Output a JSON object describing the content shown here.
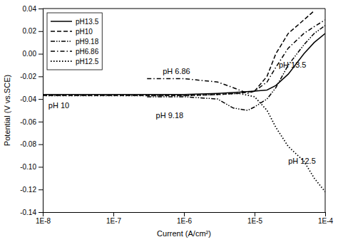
{
  "chart_data": {
    "type": "line",
    "xlabel": "Current (A/cm²)",
    "ylabel": "Potential (V vs.SCE)",
    "log": "x",
    "grid": false,
    "legend": "upper left",
    "xlim": [
      1e-08,
      0.0001
    ],
    "xticks": [
      {
        "value": 1e-08,
        "label": "1E-8"
      },
      {
        "value": 1e-07,
        "label": "1E-7"
      },
      {
        "value": 1e-06,
        "label": "1E-6"
      },
      {
        "value": 1e-05,
        "label": "1E-5"
      },
      {
        "value": 0.0001,
        "label": "1E-4"
      }
    ],
    "ylim": [
      -0.14,
      0.04
    ],
    "yticks": [
      -0.14,
      -0.12,
      {
        "value": -0.1,
        "label": "-0.10"
      },
      -0.08,
      -0.06,
      -0.04,
      -0.02,
      {
        "value": 0,
        "label": "0.00"
      },
      0.02,
      0.04
    ],
    "series": [
      {
        "name": "pH13.5",
        "color": "#000000",
        "line_style": "solid",
        "x": [
          1e-08,
          5e-08,
          1e-07,
          5e-07,
          1e-06,
          3e-06,
          6e-06,
          1e-05,
          1.5e-05,
          2e-05,
          3e-05,
          5e-05,
          7e-05,
          0.0001
        ],
        "values": [
          -0.036,
          -0.036,
          -0.036,
          -0.036,
          -0.036,
          -0.035,
          -0.034,
          -0.033,
          -0.032,
          -0.028,
          -0.018,
          0.0,
          0.01,
          0.018
        ]
      },
      {
        "name": "pH10",
        "color": "#000000",
        "line_style": "dashed",
        "x": [
          1e-08,
          5e-08,
          1e-07,
          5e-07,
          1e-06,
          3e-06,
          6e-06,
          1e-05,
          1.5e-05,
          2e-05,
          3e-05,
          5e-05,
          7e-05
        ],
        "values": [
          -0.037,
          -0.037,
          -0.037,
          -0.037,
          -0.037,
          -0.036,
          -0.035,
          -0.033,
          -0.02,
          0.0,
          0.018,
          0.03,
          0.038
        ]
      },
      {
        "name": "pH9.18",
        "color": "#000000",
        "line_style": "dashdotdot",
        "x": [
          3e-07,
          1e-06,
          3e-06,
          5e-06,
          8e-06,
          1e-05,
          1.5e-05,
          2e-05,
          3e-05,
          5e-05,
          7e-05,
          0.0001
        ],
        "values": [
          -0.038,
          -0.038,
          -0.04,
          -0.048,
          -0.05,
          -0.047,
          -0.04,
          -0.03,
          -0.01,
          0.008,
          0.018,
          0.025
        ]
      },
      {
        "name": "pH6.86",
        "color": "#000000",
        "line_style": "dashdot",
        "x": [
          3e-07,
          1e-06,
          3e-06,
          5e-06,
          8e-06,
          1e-05,
          1.5e-05,
          2e-05,
          3e-05,
          5e-05,
          7e-05,
          0.0001
        ],
        "values": [
          -0.022,
          -0.022,
          -0.025,
          -0.03,
          -0.035,
          -0.033,
          -0.025,
          -0.012,
          0.005,
          0.018,
          0.024,
          0.03
        ]
      },
      {
        "name": "pH12.5",
        "color": "#000000",
        "line_style": "dotted",
        "x": [
          1e-08,
          5e-08,
          1e-07,
          5e-07,
          1e-06,
          3e-06,
          6e-06,
          1e-05,
          1.5e-05,
          2e-05,
          3e-05,
          5e-05,
          7e-05,
          0.0001
        ],
        "values": [
          -0.037,
          -0.037,
          -0.037,
          -0.037,
          -0.037,
          -0.036,
          -0.035,
          -0.038,
          -0.05,
          -0.065,
          -0.082,
          -0.095,
          -0.11,
          -0.122
        ]
      }
    ],
    "annotations": [
      {
        "text": "pH 6.86",
        "x": 5e-07,
        "y": -0.018
      },
      {
        "text": "pH 10",
        "x": 1.2e-08,
        "y": -0.048
      },
      {
        "text": "pH 9.18",
        "x": 4e-07,
        "y": -0.057
      },
      {
        "text": "pH 13.5",
        "x": 2.2e-05,
        "y": -0.012
      },
      {
        "text": "pH 12.5",
        "x": 3e-05,
        "y": -0.097
      }
    ]
  }
}
